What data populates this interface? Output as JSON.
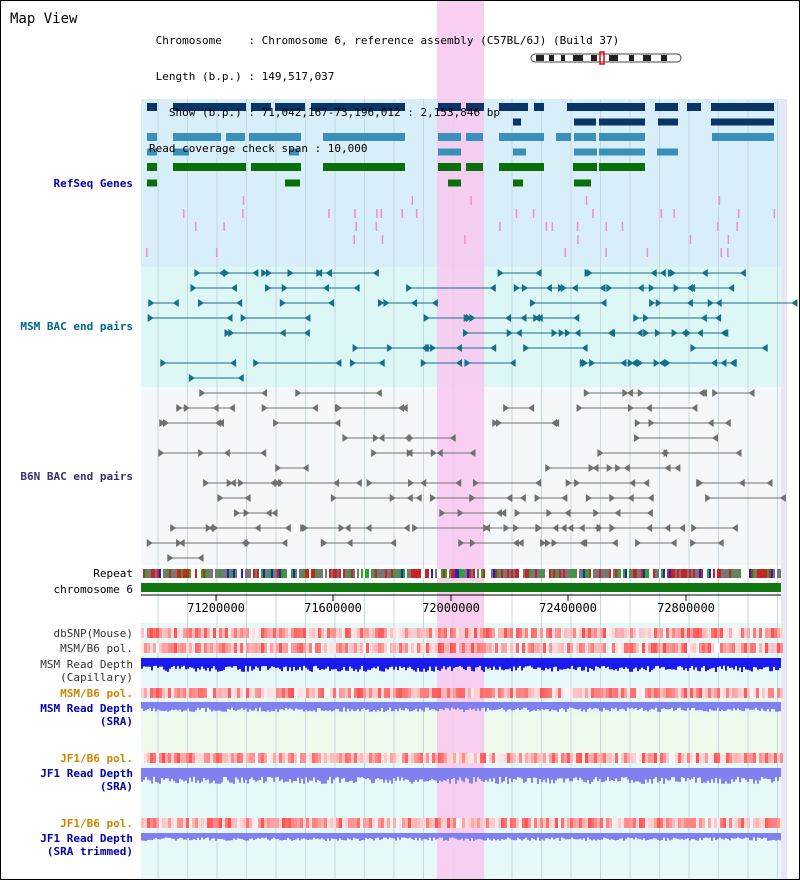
{
  "header": {
    "title": "Map View",
    "info_lines": [
      " Chromosome    : Chromosome 6, reference assembly (C57BL/6J) (Build 37)",
      " Length (b.p.) : 149,517,037",
      "   Show (b.p.) : 71,042,167-73,196,012 : 2,153,846 bp",
      "Read coverage check span : 10,000"
    ]
  },
  "tracks": [
    {
      "id": "refseq",
      "label": "RefSeq Genes",
      "color": "#0000aa"
    },
    {
      "id": "msm_bac",
      "label": "MSM BAC end pairs",
      "color": "#006688"
    },
    {
      "id": "b6n_bac",
      "label": "B6N BAC end pairs",
      "color": "#333366"
    },
    {
      "id": "repeat",
      "label": "Repeat",
      "color": "#000000"
    },
    {
      "id": "chrom",
      "label": "chromosome 6",
      "color": "#000000"
    },
    {
      "id": "dbsnp",
      "label": "dbSNP(Mouse)",
      "color": "#333333"
    },
    {
      "id": "msm_pol1",
      "label": "MSM/B6 pol.",
      "color": "#333333"
    },
    {
      "id": "msm_depth_cap",
      "label": "MSM Read Depth\n(Capillary)",
      "color": "#333333"
    },
    {
      "id": "msm_pol2",
      "label": "MSM/B6 pol.",
      "color": "#cc8800"
    },
    {
      "id": "msm_depth_sra",
      "label": "MSM Read Depth\n(SRA)",
      "color": "#0000aa"
    },
    {
      "id": "jf1_pol1",
      "label": "JF1/B6 pol.",
      "color": "#cc8800"
    },
    {
      "id": "jf1_depth_sra",
      "label": "JF1 Read Depth\n(SRA)",
      "color": "#0000aa"
    },
    {
      "id": "jf1_pol2",
      "label": "JF1/B6 pol.",
      "color": "#cc8800"
    },
    {
      "id": "jf1_depth_trim",
      "label": "JF1 Read Depth\n(SRA trimmed)",
      "color": "#0000aa"
    }
  ],
  "axis": {
    "ticks": [
      "71200000",
      "71600000",
      "72000000",
      "72400000",
      "72800000"
    ]
  },
  "colors": {
    "highlight": "#f8c8f0",
    "refseq_bg": "#d8eef8",
    "msm_bg": "#ddf6f6",
    "b6n_bg": "#f4f8fa",
    "refseq_dark": "#0a3366",
    "refseq_mid": "#3a90b8",
    "refseq_green": "#0a6e0a",
    "msm_feature": "#14708a",
    "b6n_feature": "#707070",
    "chromosome": "#117711",
    "snp_red": "#f03030",
    "depth_dark": "#1a1aee",
    "depth_light": "#8080f0"
  }
}
